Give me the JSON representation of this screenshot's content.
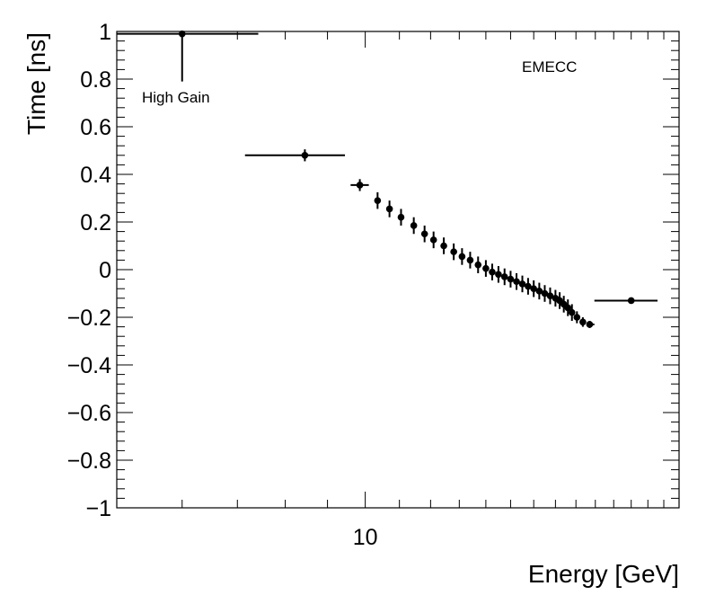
{
  "chart_data": {
    "type": "scatter",
    "title": "",
    "xlabel": "Energy [GeV]",
    "ylabel": "Time [ns]",
    "xscale": "log",
    "xlim": [
      5,
      24
    ],
    "ylim": [
      -1,
      1
    ],
    "xtick_major": [
      10
    ],
    "xtick_major_labels": [
      "10"
    ],
    "ytick_labels": [
      "−1",
      "−0.8",
      "−0.6",
      "−0.4",
      "−0.2",
      "0",
      "0.2",
      "0.4",
      "0.6",
      "0.8",
      "1"
    ],
    "ytick_values": [
      -1,
      -0.8,
      -0.6,
      -0.4,
      -0.2,
      0,
      0.2,
      0.4,
      0.6,
      0.8,
      1
    ],
    "grid": false,
    "legend": "none",
    "annotations": {
      "region_label": "EMECC",
      "gain_label": "High Gain"
    },
    "series": [
      {
        "name": "High Gain",
        "points": [
          {
            "x": 6.0,
            "y": 0.99,
            "xlo": 5.0,
            "xhi": 7.42,
            "ylo": 0.79,
            "yhi": 0.99
          },
          {
            "x": 8.45,
            "y": 0.48,
            "xlo": 7.15,
            "xhi": 9.45,
            "ylo": 0.455,
            "yhi": 0.505
          },
          {
            "x": 9.85,
            "y": 0.355,
            "xlo": 9.6,
            "xhi": 10.1,
            "ylo": 0.33,
            "yhi": 0.38
          },
          {
            "x": 10.35,
            "y": 0.29,
            "ylo": 0.255,
            "yhi": 0.325
          },
          {
            "x": 10.7,
            "y": 0.255,
            "ylo": 0.22,
            "yhi": 0.29
          },
          {
            "x": 11.05,
            "y": 0.22,
            "ylo": 0.185,
            "yhi": 0.255
          },
          {
            "x": 11.45,
            "y": 0.185,
            "ylo": 0.15,
            "yhi": 0.22
          },
          {
            "x": 11.8,
            "y": 0.15,
            "ylo": 0.115,
            "yhi": 0.185
          },
          {
            "x": 12.1,
            "y": 0.125,
            "ylo": 0.09,
            "yhi": 0.16
          },
          {
            "x": 12.45,
            "y": 0.1,
            "ylo": 0.065,
            "yhi": 0.135
          },
          {
            "x": 12.8,
            "y": 0.075,
            "ylo": 0.04,
            "yhi": 0.11
          },
          {
            "x": 13.1,
            "y": 0.055,
            "ylo": 0.02,
            "yhi": 0.09
          },
          {
            "x": 13.4,
            "y": 0.04,
            "ylo": 0.005,
            "yhi": 0.075
          },
          {
            "x": 13.7,
            "y": 0.02,
            "ylo": -0.015,
            "yhi": 0.055
          },
          {
            "x": 14.0,
            "y": 0.005,
            "ylo": -0.03,
            "yhi": 0.04
          },
          {
            "x": 14.25,
            "y": -0.01,
            "ylo": -0.045,
            "yhi": 0.025
          },
          {
            "x": 14.5,
            "y": -0.02,
            "ylo": -0.055,
            "yhi": 0.015
          },
          {
            "x": 14.75,
            "y": -0.03,
            "ylo": -0.065,
            "yhi": 0.005
          },
          {
            "x": 15.0,
            "y": -0.04,
            "ylo": -0.075,
            "yhi": -0.005
          },
          {
            "x": 15.25,
            "y": -0.05,
            "ylo": -0.085,
            "yhi": -0.015
          },
          {
            "x": 15.5,
            "y": -0.06,
            "ylo": -0.095,
            "yhi": -0.025
          },
          {
            "x": 15.75,
            "y": -0.07,
            "ylo": -0.105,
            "yhi": -0.035
          },
          {
            "x": 16.0,
            "y": -0.08,
            "ylo": -0.115,
            "yhi": -0.045
          },
          {
            "x": 16.25,
            "y": -0.09,
            "ylo": -0.125,
            "yhi": -0.055
          },
          {
            "x": 16.5,
            "y": -0.1,
            "ylo": -0.135,
            "yhi": -0.065
          },
          {
            "x": 16.75,
            "y": -0.11,
            "ylo": -0.145,
            "yhi": -0.075
          },
          {
            "x": 17.0,
            "y": -0.12,
            "ylo": -0.155,
            "yhi": -0.085
          },
          {
            "x": 17.2,
            "y": -0.13,
            "ylo": -0.165,
            "yhi": -0.095
          },
          {
            "x": 17.4,
            "y": -0.145,
            "ylo": -0.18,
            "yhi": -0.11
          },
          {
            "x": 17.6,
            "y": -0.16,
            "ylo": -0.195,
            "yhi": -0.125
          },
          {
            "x": 17.8,
            "y": -0.18,
            "ylo": -0.215,
            "yhi": -0.145
          },
          {
            "x": 18.05,
            "y": -0.2,
            "ylo": -0.225,
            "yhi": -0.175
          },
          {
            "x": 18.35,
            "y": -0.22,
            "ylo": -0.24,
            "yhi": -0.2
          },
          {
            "x": 18.7,
            "y": -0.23,
            "ylo": -0.245,
            "yhi": -0.215,
            "xlo": 18.55,
            "xhi": 18.95
          },
          {
            "x": 21.0,
            "y": -0.13,
            "xlo": 18.95,
            "xhi": 22.6,
            "ylo": -0.14,
            "yhi": -0.12
          }
        ]
      }
    ]
  }
}
